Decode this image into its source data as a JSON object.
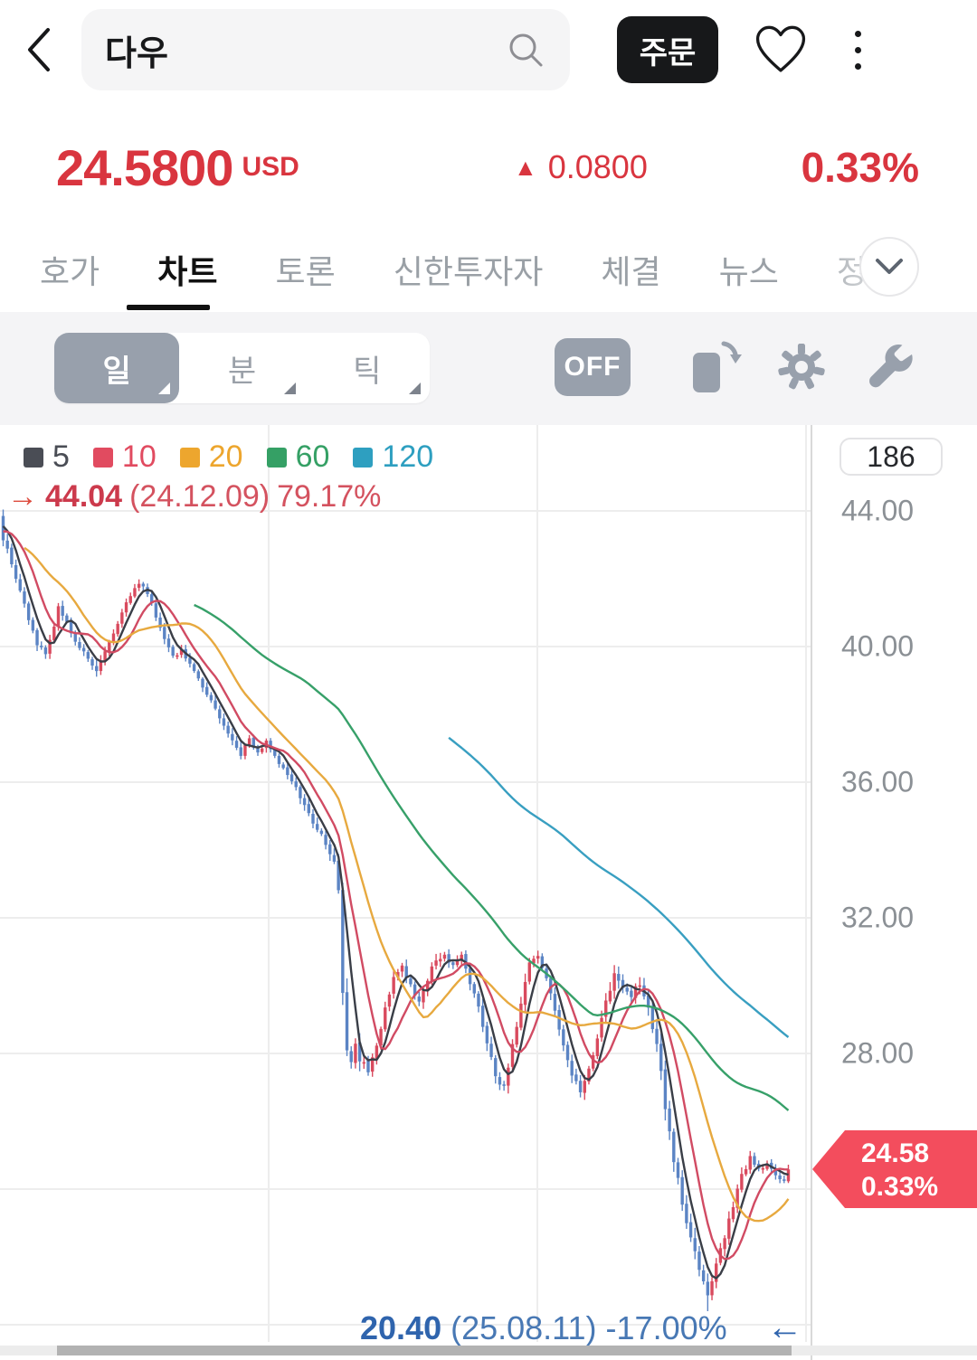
{
  "header": {
    "search_value": "다우",
    "order_label": "주문"
  },
  "quote": {
    "price": "24.5800",
    "currency": "USD",
    "change_arrow": "▲",
    "change_value": "0.0800",
    "change_pct": "0.33%",
    "accent_color": "#d9353f"
  },
  "tabs": {
    "items": [
      "호가",
      "차트",
      "토론",
      "신한투자자",
      "체결",
      "뉴스",
      "정"
    ],
    "active": "차트"
  },
  "toolbar": {
    "periods": [
      {
        "label": "일",
        "selected": true
      },
      {
        "label": "분",
        "selected": false
      },
      {
        "label": "틱",
        "selected": false
      }
    ],
    "off_label": "OFF",
    "icons": [
      "rotate-screen-icon",
      "gear-icon",
      "wrench-icon"
    ]
  },
  "chart_data": {
    "type": "candlestick",
    "unit": "daily",
    "visible_candles": 186,
    "count_badge": "186",
    "y_axis": {
      "ticks": [
        {
          "label": "44.00",
          "price": 44
        },
        {
          "label": "40.00",
          "price": 40
        },
        {
          "label": "36.00",
          "price": 36
        },
        {
          "label": "32.00",
          "price": 32
        },
        {
          "label": "28.00",
          "price": 28
        }
      ],
      "grid_prices": [
        44,
        40,
        36,
        32,
        28,
        24,
        20
      ]
    },
    "legend": [
      {
        "label": "5",
        "color": "#4a4d55",
        "line_color": "#3a3e47",
        "period": 5
      },
      {
        "label": "10",
        "color": "#e14b60",
        "line_color": "#d14b63",
        "period": 10
      },
      {
        "label": "20",
        "color": "#eda62e",
        "line_color": "#e7a93f",
        "period": 20
      },
      {
        "label": "60",
        "color": "#35a065",
        "line_color": "#37a069",
        "period": 60
      },
      {
        "label": "120",
        "color": "#2e9fc0",
        "line_color": "#399fc1",
        "period": 120
      }
    ],
    "colors": {
      "up": "#d94a5e",
      "down": "#5b84c4",
      "grid": "#ededed",
      "axis": "#d9d9d9"
    },
    "annotations": {
      "high": {
        "arrow": "→",
        "value": "44.04",
        "date": "(24.12.09)",
        "pct": "79.17%",
        "price": 44.04
      },
      "low": {
        "value": "20.40",
        "date": "(25.08.11)",
        "pct": "-17.00%",
        "arrow": "←",
        "price": 20.4
      },
      "current": {
        "price_label": "24.58",
        "pct_label": "0.33%",
        "price": 24.58
      }
    },
    "close_anchors": [
      [
        0,
        43.2,
        0.6
      ],
      [
        2,
        42.4,
        0.6
      ],
      [
        4,
        41.7,
        0.5
      ],
      [
        6,
        40.8,
        0.5
      ],
      [
        8,
        40.1,
        0.5
      ],
      [
        10,
        39.8,
        0.5
      ],
      [
        12,
        40.6,
        0.5
      ],
      [
        13,
        41.2,
        0.45
      ],
      [
        15,
        40.7,
        0.45
      ],
      [
        17,
        40.1,
        0.4
      ],
      [
        20,
        39.7,
        0.45
      ],
      [
        22,
        39.3,
        0.5
      ],
      [
        24,
        39.9,
        0.4
      ],
      [
        26,
        40.4,
        0.4
      ],
      [
        28,
        41.0,
        0.4
      ],
      [
        30,
        41.5,
        0.4
      ],
      [
        32,
        41.9,
        0.45
      ],
      [
        34,
        41.6,
        0.4
      ],
      [
        36,
        40.9,
        0.45
      ],
      [
        38,
        40.2,
        0.5
      ],
      [
        40,
        39.7,
        0.45
      ],
      [
        42,
        39.9,
        0.4
      ],
      [
        44,
        39.5,
        0.4
      ],
      [
        46,
        39.1,
        0.4
      ],
      [
        48,
        38.6,
        0.45
      ],
      [
        50,
        38.2,
        0.45
      ],
      [
        52,
        37.6,
        0.5
      ],
      [
        54,
        37.2,
        0.5
      ],
      [
        56,
        36.8,
        0.5
      ],
      [
        58,
        37.3,
        0.4
      ],
      [
        60,
        36.9,
        0.4
      ],
      [
        62,
        37.2,
        0.4
      ],
      [
        64,
        36.8,
        0.4
      ],
      [
        66,
        36.4,
        0.45
      ],
      [
        68,
        36.0,
        0.5
      ],
      [
        70,
        35.6,
        0.5
      ],
      [
        72,
        35.1,
        0.6
      ],
      [
        74,
        34.6,
        0.6
      ],
      [
        76,
        34.2,
        0.6
      ],
      [
        78,
        33.6,
        0.7
      ],
      [
        79,
        32.8,
        0.8
      ],
      [
        80,
        29.8,
        1.1
      ],
      [
        81,
        28.2,
        1.2
      ],
      [
        82,
        27.7,
        1.2
      ],
      [
        83,
        28.4,
        1.0
      ],
      [
        84,
        27.9,
        0.9
      ],
      [
        86,
        27.5,
        0.9
      ],
      [
        88,
        28.3,
        0.7
      ],
      [
        90,
        29.3,
        0.6
      ],
      [
        92,
        30.2,
        0.6
      ],
      [
        94,
        30.6,
        0.6
      ],
      [
        96,
        30.0,
        0.55
      ],
      [
        98,
        29.5,
        0.55
      ],
      [
        100,
        30.2,
        0.6
      ],
      [
        102,
        30.8,
        0.8
      ],
      [
        104,
        30.9,
        0.5
      ],
      [
        106,
        30.6,
        0.5
      ],
      [
        108,
        30.9,
        0.5
      ],
      [
        110,
        30.1,
        0.55
      ],
      [
        112,
        29.3,
        0.6
      ],
      [
        114,
        28.4,
        0.75
      ],
      [
        116,
        27.3,
        0.8
      ],
      [
        118,
        27.0,
        0.7
      ],
      [
        120,
        28.2,
        0.65
      ],
      [
        122,
        29.5,
        0.7
      ],
      [
        124,
        30.6,
        0.8
      ],
      [
        126,
        30.9,
        0.6
      ],
      [
        128,
        30.2,
        0.6
      ],
      [
        130,
        29.2,
        0.6
      ],
      [
        132,
        28.2,
        0.65
      ],
      [
        134,
        27.3,
        0.7
      ],
      [
        136,
        26.9,
        0.6
      ],
      [
        138,
        27.6,
        0.6
      ],
      [
        140,
        28.4,
        0.6
      ],
      [
        142,
        29.6,
        0.7
      ],
      [
        144,
        30.3,
        0.8
      ],
      [
        146,
        30.0,
        0.6
      ],
      [
        148,
        29.7,
        0.6
      ],
      [
        150,
        30.1,
        0.7
      ],
      [
        152,
        29.3,
        0.7
      ],
      [
        154,
        28.2,
        0.9
      ],
      [
        156,
        26.5,
        1.0
      ],
      [
        158,
        24.8,
        1.0
      ],
      [
        160,
        23.6,
        0.9
      ],
      [
        162,
        22.6,
        0.9
      ],
      [
        164,
        21.6,
        0.9
      ],
      [
        166,
        20.9,
        0.8
      ],
      [
        168,
        21.8,
        0.7
      ],
      [
        170,
        22.6,
        0.65
      ],
      [
        172,
        23.5,
        0.6
      ],
      [
        174,
        24.4,
        0.6
      ],
      [
        176,
        24.9,
        0.55
      ],
      [
        178,
        24.6,
        0.5
      ],
      [
        180,
        24.7,
        0.5
      ],
      [
        182,
        24.4,
        0.5
      ],
      [
        184,
        24.3,
        0.5
      ],
      [
        185,
        24.58,
        0.5
      ]
    ],
    "prehistory": {
      "count": 14,
      "from": 42.6,
      "to": 43.8
    },
    "first_open": 43.85,
    "first_high": 44.04,
    "low_index": 166,
    "last_index": 185
  }
}
